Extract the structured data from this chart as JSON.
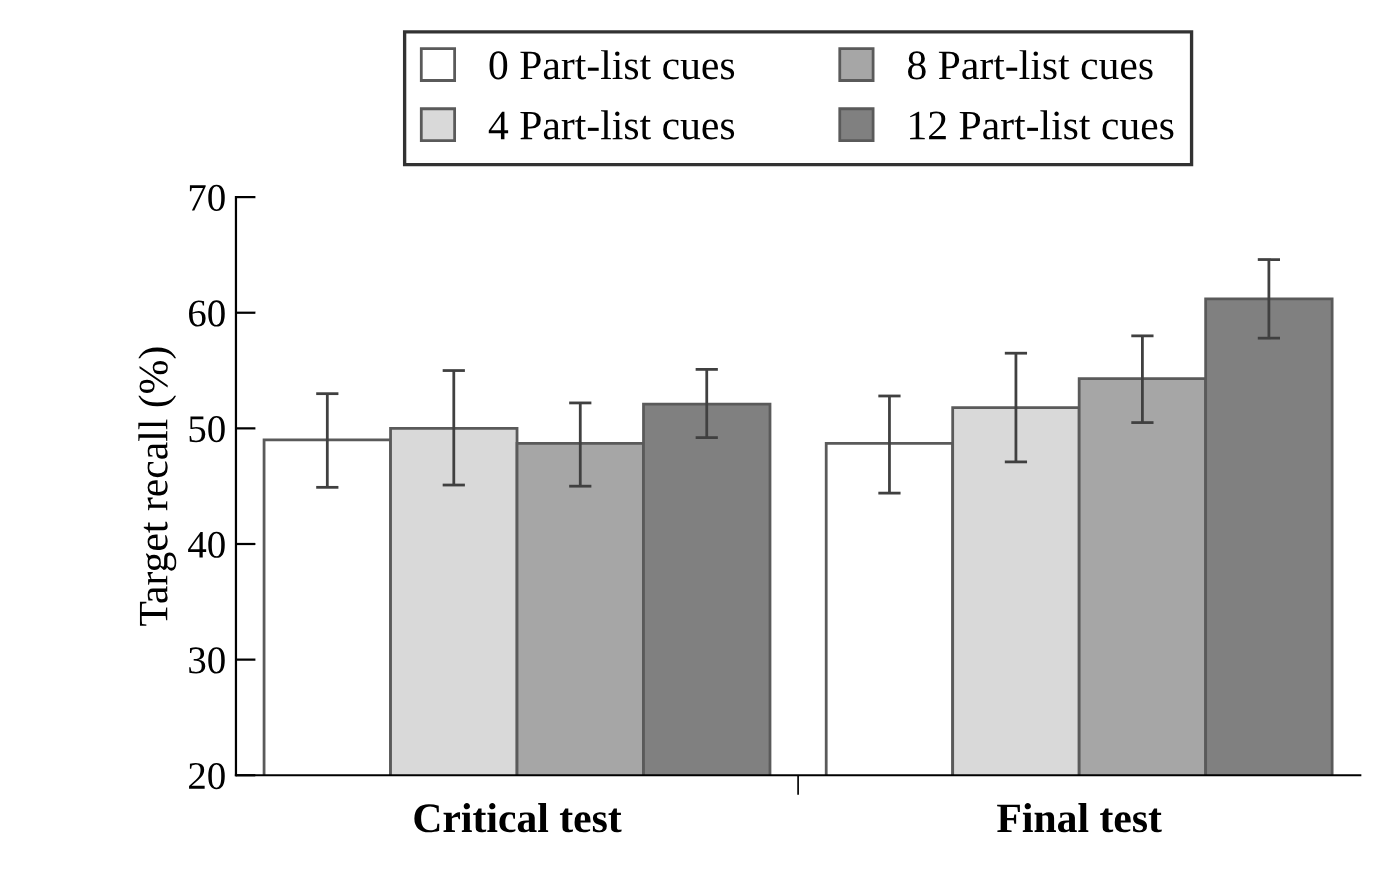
{
  "chart_data": {
    "type": "bar",
    "ylabel": "Target recall (%)",
    "categories": [
      "Critical test",
      "Final test"
    ],
    "series": [
      {
        "name": "0 Part-list cues",
        "color": "#ffffff",
        "values": [
          49.0,
          48.7
        ],
        "errors": [
          [
            44.9,
            53.0
          ],
          [
            44.4,
            52.8
          ]
        ]
      },
      {
        "name": "4 Part-list cues",
        "color": "#d9d9d9",
        "values": [
          50.0,
          51.8
        ],
        "errors": [
          [
            45.1,
            55.0
          ],
          [
            47.1,
            56.5
          ]
        ]
      },
      {
        "name": "8 Part-list cues",
        "color": "#a6a6a6",
        "values": [
          48.7,
          54.3
        ],
        "errors": [
          [
            45.0,
            52.2
          ],
          [
            50.5,
            58.0
          ]
        ]
      },
      {
        "name": "12 Part-list cues",
        "color": "#808080",
        "values": [
          52.1,
          61.2
        ],
        "errors": [
          [
            49.2,
            55.1
          ],
          [
            57.8,
            64.6
          ]
        ]
      }
    ],
    "ylim": [
      20,
      70
    ],
    "yticks": [
      20,
      30,
      40,
      50,
      60,
      70
    ],
    "legend": "top",
    "grid": false
  }
}
